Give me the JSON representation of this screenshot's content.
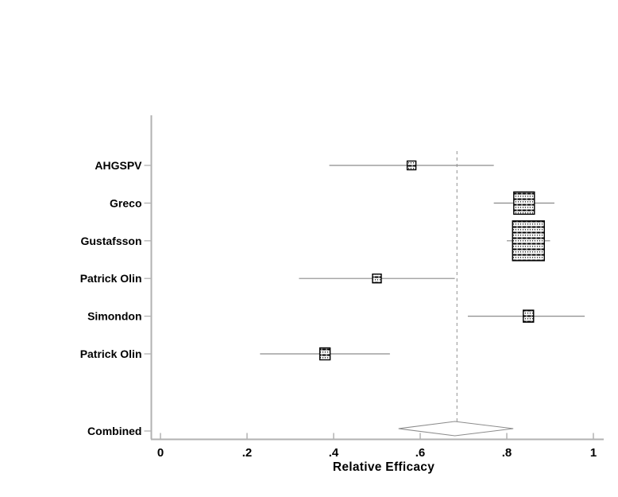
{
  "figure": {
    "background": "#ffffff",
    "description": "Forest plot of relative efficacy estimates from six studies with combined diamond"
  },
  "chart_data": {
    "type": "forest",
    "title": "",
    "xlabel": "Relative Efficacy",
    "ylabel": "",
    "xlim": [
      0,
      1
    ],
    "grid": false,
    "x_ticks": [
      {
        "label": "0",
        "value": 0.0
      },
      {
        "label": ".2",
        "value": 0.2
      },
      {
        "label": ".4",
        "value": 0.4
      },
      {
        "label": ".6",
        "value": 0.6
      },
      {
        "label": ".8",
        "value": 0.8
      },
      {
        "label": "1",
        "value": 1.0
      }
    ],
    "studies": [
      {
        "label": "AHGSPV",
        "est": 0.58,
        "lo": 0.39,
        "hi": 0.77,
        "marker_w": 11,
        "marker_h": 11
      },
      {
        "label": "Greco",
        "est": 0.84,
        "lo": 0.77,
        "hi": 0.91,
        "marker_w": 26,
        "marker_h": 28
      },
      {
        "label": "Gustafsson",
        "est": 0.85,
        "lo": 0.8,
        "hi": 0.9,
        "marker_w": 40,
        "marker_h": 50
      },
      {
        "label": "Patrick Olin",
        "est": 0.5,
        "lo": 0.32,
        "hi": 0.68,
        "marker_w": 11,
        "marker_h": 11
      },
      {
        "label": "Simondon",
        "est": 0.85,
        "lo": 0.71,
        "hi": 0.98,
        "marker_w": 13,
        "marker_h": 15
      },
      {
        "label": "Patrick Olin",
        "est": 0.38,
        "lo": 0.23,
        "hi": 0.53,
        "marker_w": 13,
        "marker_h": 15
      }
    ],
    "combined": {
      "label": "Combined",
      "est": 0.68,
      "lo": 0.55,
      "hi": 0.815
    },
    "dashed_line_value": 0.685,
    "colors": {
      "axis": "#b2b2b2",
      "ci_line": "#8c8c8c",
      "marker_border": "#000000",
      "marker_fill": "#ffffff",
      "diamond_border": "#8c8c8c",
      "diamond_fill": "#ffffff",
      "dashed_line": "#aaaaaa",
      "text": "#000000"
    }
  }
}
